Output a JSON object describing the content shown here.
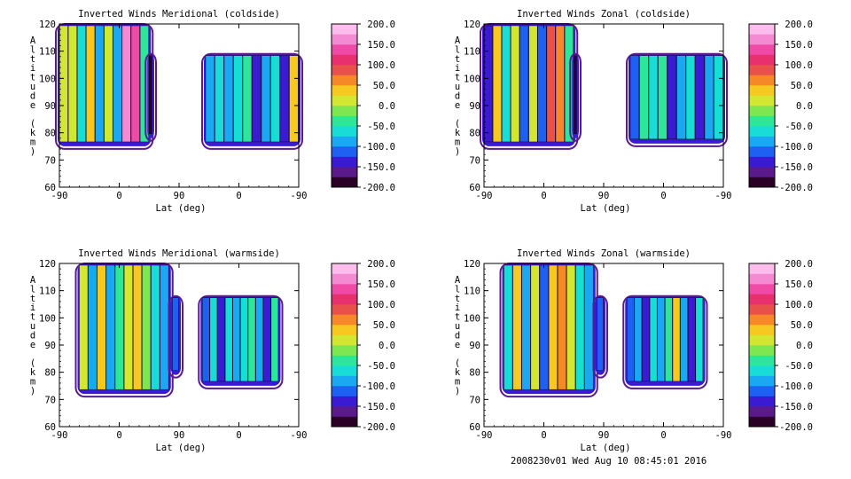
{
  "footer": "2008230v01 Wed Aug 10 08:45:01 2016",
  "colorbar": {
    "ticks": [
      "200.0",
      "150.0",
      "100.0",
      "50.0",
      "0.0",
      "-50.0",
      "-100.0",
      "-150.0",
      "-200.0"
    ],
    "stops": [
      "#2a0026",
      "#5a1a8c",
      "#3a1ad2",
      "#1e60f2",
      "#1aa8f2",
      "#18dcd6",
      "#2ee69a",
      "#7ee650",
      "#d2e632",
      "#f6c820",
      "#f6882a",
      "#e8504a",
      "#e8306e",
      "#ee4aa6",
      "#f48ad2",
      "#fcbcec"
    ]
  },
  "chart_data": [
    {
      "type": "heatmap",
      "title": "Inverted Winds Meridional (coldside)",
      "xlabel": "Lat (deg)",
      "ylabel": "Altitude (km)",
      "xticks": [
        "-90",
        "0",
        "90",
        "0",
        "-90"
      ],
      "yticks": [
        "60",
        "70",
        "80",
        "90",
        "100",
        "110",
        "120"
      ],
      "ylim": [
        60,
        120
      ],
      "zlim": [
        -200,
        200
      ],
      "bands": [
        {
          "lat_range": [
            -90,
            45
          ],
          "alt_range": [
            76,
            120
          ],
          "values": [
            20,
            0,
            -60,
            40,
            -90,
            10,
            -80,
            150,
            130,
            -40
          ]
        },
        {
          "lat_range": [
            45,
            50
          ],
          "alt_range": [
            79,
            109
          ],
          "values": [
            -200
          ]
        },
        {
          "lat_range": [
            130,
            -90
          ],
          "alt_range": [
            76,
            109
          ],
          "values": [
            -100,
            -60,
            -80,
            -60,
            -40,
            -150,
            -90,
            -60,
            -150,
            40
          ]
        }
      ]
    },
    {
      "type": "heatmap",
      "title": "Inverted Winds Zonal (coldside)",
      "xlabel": "Lat (deg)",
      "ylabel": "Altitude (km)",
      "xticks": [
        "-90",
        "0",
        "90",
        "0",
        "-90"
      ],
      "yticks": [
        "60",
        "70",
        "80",
        "90",
        "100",
        "110",
        "120"
      ],
      "ylim": [
        60,
        120
      ],
      "zlim": [
        -200,
        200
      ],
      "bands": [
        {
          "lat_range": [
            -90,
            45
          ],
          "alt_range": [
            76,
            120
          ],
          "values": [
            -150,
            30,
            -60,
            10,
            -110,
            20,
            -120,
            90,
            60,
            -30
          ]
        },
        {
          "lat_range": [
            45,
            50
          ],
          "alt_range": [
            79,
            109
          ],
          "values": [
            -200
          ]
        },
        {
          "lat_range": [
            130,
            -90
          ],
          "alt_range": [
            77,
            109
          ],
          "values": [
            -110,
            -40,
            -60,
            -50,
            -150,
            -80,
            -60,
            -140,
            -90,
            -60
          ]
        }
      ]
    },
    {
      "type": "heatmap",
      "title": "Inverted Winds Meridional (warmside)",
      "xlabel": "Lat (deg)",
      "ylabel": "Altitude (km)",
      "xticks": [
        "-90",
        "0",
        "90",
        "0",
        "-90"
      ],
      "yticks": [
        "60",
        "70",
        "80",
        "90",
        "100",
        "110",
        "120"
      ],
      "ylim": [
        60,
        120
      ],
      "zlim": [
        -200,
        200
      ],
      "bands": [
        {
          "lat_range": [
            -60,
            75
          ],
          "alt_range": [
            73,
            120
          ],
          "values": [
            20,
            -80,
            30,
            -100,
            -30,
            20,
            30,
            -10,
            -60,
            -90
          ]
        },
        {
          "lat_range": [
            80,
            90
          ],
          "alt_range": [
            80,
            108
          ],
          "values": [
            -120
          ]
        },
        {
          "lat_range": [
            125,
            -60
          ],
          "alt_range": [
            76,
            108
          ],
          "values": [
            -110,
            -70,
            -150,
            -60,
            -100,
            -70,
            -40,
            -90,
            -150,
            -40
          ]
        }
      ]
    },
    {
      "type": "heatmap",
      "title": "Inverted Winds Zonal (warmside)",
      "xlabel": "Lat (deg)",
      "ylabel": "Altitude (km)",
      "xticks": [
        "-90",
        "0",
        "90",
        "0",
        "-90"
      ],
      "yticks": [
        "60",
        "70",
        "80",
        "90",
        "100",
        "110",
        "120"
      ],
      "ylim": [
        60,
        120
      ],
      "zlim": [
        -200,
        200
      ],
      "bands": [
        {
          "lat_range": [
            -60,
            75
          ],
          "alt_range": [
            73,
            120
          ],
          "values": [
            -60,
            40,
            -90,
            10,
            -110,
            40,
            50,
            20,
            -60,
            -80
          ]
        },
        {
          "lat_range": [
            80,
            90
          ],
          "alt_range": [
            80,
            108
          ],
          "values": [
            -120
          ]
        },
        {
          "lat_range": [
            125,
            -60
          ],
          "alt_range": [
            76,
            108
          ],
          "values": [
            -110,
            -80,
            -140,
            -60,
            -90,
            -50,
            30,
            -90,
            -150,
            -60
          ]
        }
      ]
    }
  ]
}
